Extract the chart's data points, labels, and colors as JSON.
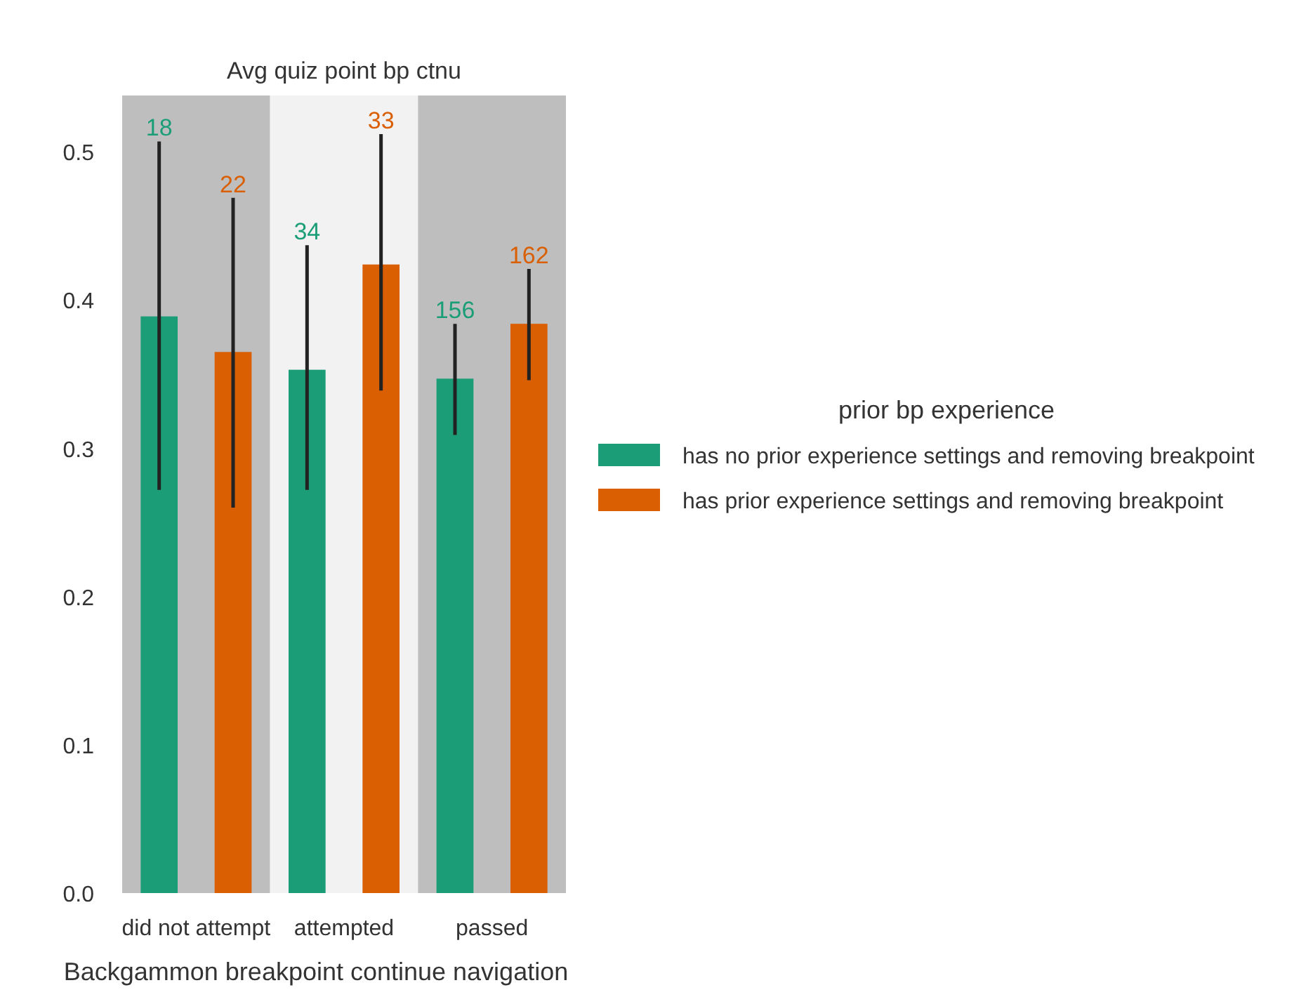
{
  "chart_data": {
    "type": "bar",
    "title": "Avg quiz point bp ctnu",
    "xlabel": "Backgammon breakpoint continue navigation",
    "legend_title": "prior bp experience",
    "categories": [
      "did not attempt",
      "attempted",
      "passed"
    ],
    "series": [
      {
        "name": "has no prior experience settings and removing breakpoint",
        "color": "#1b9e77",
        "values": [
          0.389,
          0.353,
          0.347
        ],
        "errors": [
          [
            0.272,
            0.507
          ],
          [
            0.272,
            0.437
          ],
          [
            0.309,
            0.384
          ]
        ]
      },
      {
        "name": "has prior experience settings and removing breakpoint",
        "color": "#d95f02",
        "values": [
          0.365,
          0.424,
          0.384
        ],
        "errors": [
          [
            0.26,
            0.469
          ],
          [
            0.339,
            0.512
          ],
          [
            0.346,
            0.421
          ]
        ]
      }
    ],
    "annotations": [
      "18",
      "22",
      "34",
      "33",
      "156",
      "162"
    ],
    "ylim": [
      0,
      0.538
    ],
    "yticks": [
      {
        "value": 0,
        "label": "0.0"
      },
      0.1,
      0.2,
      0.3,
      0.4,
      0.5
    ],
    "grid": false,
    "legend": "right",
    "bands": [
      {
        "axis": "x",
        "from": "did not attempt",
        "to": "did not attempt",
        "color": "#bebebe"
      },
      {
        "axis": "x",
        "from": "attempted",
        "to": "attempted",
        "color": "#f2f2f2"
      },
      {
        "axis": "x",
        "from": "passed",
        "to": "passed",
        "color": "#bebebe"
      }
    ]
  }
}
